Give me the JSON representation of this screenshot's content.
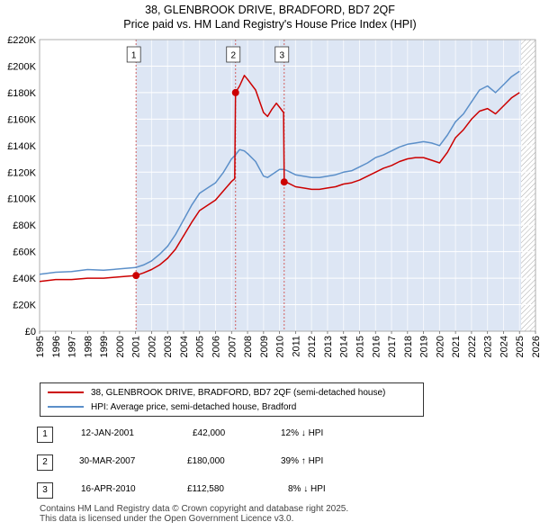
{
  "title_line1": "38, GLENBROOK DRIVE, BRADFORD, BD7 2QF",
  "title_line2": "Price paid vs. HM Land Registry's House Price Index (HPI)",
  "colors": {
    "property": "#cc0000",
    "hpi": "#5b8fc9",
    "shade": "#dde6f4",
    "hatch": "#aaaaaa",
    "marker_line": "#d06060"
  },
  "legend": {
    "property_label": "38, GLENBROOK DRIVE, BRADFORD, BD7 2QF (semi-detached house)",
    "hpi_label": "HPI: Average price, semi-detached house, Bradford"
  },
  "transactions": [
    {
      "num": "1",
      "date": "12-JAN-2001",
      "price": "£42,000",
      "hpi": "12% ↓ HPI"
    },
    {
      "num": "2",
      "date": "30-MAR-2007",
      "price": "£180,000",
      "hpi": "39% ↑ HPI"
    },
    {
      "num": "3",
      "date": "16-APR-2010",
      "price": "£112,580",
      "hpi": "8% ↓ HPI"
    }
  ],
  "footer_line1": "Contains HM Land Registry data © Crown copyright and database right 2025.",
  "footer_line2": "This data is licensed under the Open Government Licence v3.0.",
  "chart_data": {
    "type": "line",
    "xlim": [
      1995,
      2026
    ],
    "ylim": [
      0,
      220000
    ],
    "x_ticks": [
      "1995",
      "1996",
      "1997",
      "1998",
      "1999",
      "2000",
      "2001",
      "2002",
      "2003",
      "2004",
      "2005",
      "2006",
      "2007",
      "2008",
      "2009",
      "2010",
      "2011",
      "2012",
      "2013",
      "2014",
      "2015",
      "2016",
      "2017",
      "2018",
      "2019",
      "2020",
      "2021",
      "2022",
      "2023",
      "2024",
      "2025",
      "2026"
    ],
    "y_ticks": [
      {
        "value": 0,
        "label": "£0"
      },
      {
        "value": 20000,
        "label": "£20K"
      },
      {
        "value": 40000,
        "label": "£40K"
      },
      {
        "value": 60000,
        "label": "£60K"
      },
      {
        "value": 80000,
        "label": "£80K"
      },
      {
        "value": 100000,
        "label": "£100K"
      },
      {
        "value": 120000,
        "label": "£120K"
      },
      {
        "value": 140000,
        "label": "£140K"
      },
      {
        "value": 160000,
        "label": "£160K"
      },
      {
        "value": 180000,
        "label": "£180K"
      },
      {
        "value": 200000,
        "label": "£200K"
      },
      {
        "value": 220000,
        "label": "£220K"
      }
    ],
    "shaded_from": 2001.03,
    "hatched_from": 2025.1,
    "sales": [
      {
        "label": "1",
        "x": 2001.03,
        "y": 42000
      },
      {
        "label": "2",
        "x": 2007.25,
        "y": 180000
      },
      {
        "label": "3",
        "x": 2010.29,
        "y": 112580
      }
    ],
    "series": [
      {
        "name": "HPI: Average price, semi-detached house, Bradford",
        "x": [
          1995,
          1996,
          1997,
          1998,
          1999,
          2000,
          2001,
          2001.5,
          2002,
          2002.5,
          2003,
          2003.5,
          2004,
          2004.5,
          2005,
          2005.5,
          2006,
          2006.5,
          2007,
          2007.25,
          2007.5,
          2007.8,
          2008,
          2008.5,
          2009,
          2009.25,
          2009.5,
          2010,
          2010.29,
          2010.5,
          2011,
          2011.5,
          2012,
          2012.5,
          2013,
          2013.5,
          2014,
          2014.5,
          2015,
          2015.5,
          2016,
          2016.5,
          2017,
          2017.5,
          2018,
          2018.5,
          2019,
          2019.5,
          2020,
          2020.5,
          2021,
          2021.5,
          2022,
          2022.5,
          2023,
          2023.5,
          2024,
          2024.5,
          2025
        ],
        "y": [
          43000,
          44500,
          45000,
          46500,
          46000,
          47000,
          48000,
          50000,
          53000,
          58000,
          64000,
          73000,
          84000,
          95000,
          104000,
          108000,
          112000,
          120000,
          130000,
          133000,
          137000,
          136000,
          134000,
          128000,
          117000,
          116000,
          118000,
          122000,
          122000,
          121000,
          118000,
          117000,
          116000,
          116000,
          117000,
          118000,
          120000,
          121000,
          124000,
          127000,
          131000,
          133000,
          136000,
          139000,
          141000,
          142000,
          143000,
          142000,
          140000,
          148000,
          158000,
          164000,
          173000,
          182000,
          185000,
          180000,
          186000,
          192000,
          196000
        ]
      },
      {
        "name": "38, GLENBROOK DRIVE, BRADFORD, BD7 2QF (semi-detached house)",
        "x": [
          1995,
          1996,
          1997,
          1998,
          1999,
          2000,
          2001.03,
          2001.5,
          2002,
          2002.5,
          2003,
          2003.5,
          2004,
          2004.5,
          2005,
          2005.5,
          2006,
          2006.5,
          2007,
          2007.2,
          2007.25,
          2007.5,
          2007.8,
          2008,
          2008.5,
          2009,
          2009.25,
          2009.5,
          2009.8,
          2010,
          2010.25,
          2010.29,
          2010.5,
          2011,
          2011.5,
          2012,
          2012.5,
          2013,
          2013.5,
          2014,
          2014.5,
          2015,
          2015.5,
          2016,
          2016.5,
          2017,
          2017.5,
          2018,
          2018.5,
          2019,
          2019.5,
          2020,
          2020.5,
          2021,
          2021.5,
          2022,
          2022.5,
          2023,
          2023.5,
          2024,
          2024.5,
          2025
        ],
        "y": [
          37500,
          39000,
          39000,
          40000,
          40000,
          41000,
          42000,
          44000,
          46500,
          50000,
          55000,
          62000,
          72000,
          82000,
          91000,
          95000,
          99000,
          106000,
          113000,
          115000,
          180000,
          185000,
          193000,
          190000,
          182000,
          165000,
          162000,
          167000,
          172000,
          169000,
          165000,
          112580,
          112000,
          109000,
          108000,
          107000,
          107000,
          108000,
          109000,
          111000,
          112000,
          114000,
          117000,
          120000,
          123000,
          125000,
          128000,
          130000,
          131000,
          131000,
          129000,
          127000,
          135000,
          146000,
          152000,
          160000,
          166000,
          168000,
          164000,
          170000,
          176000,
          180000
        ]
      }
    ]
  }
}
